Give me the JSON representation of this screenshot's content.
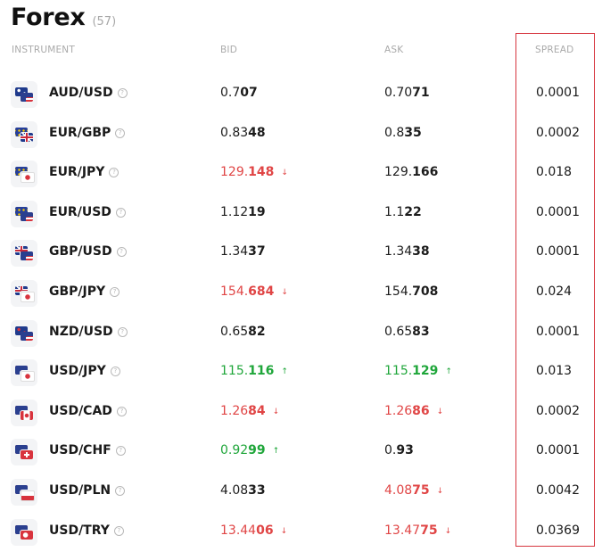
{
  "header": {
    "title": "Forex",
    "count": "(57)"
  },
  "columns": {
    "instrument": "INSTRUMENT",
    "bid": "BID",
    "ask": "ASK",
    "spread": "SPREAD"
  },
  "colors": {
    "up": "#1fa63a",
    "down": "#e04545",
    "neutral": "#1a1a1a",
    "highlight_box": "#d6363f"
  },
  "rows": [
    {
      "pair": "AUD/USD",
      "flags": [
        "AU",
        "US"
      ],
      "bid": {
        "base": "0.7",
        "hl": "07",
        "dir": "none"
      },
      "ask": {
        "base": "0.70",
        "hl": "71",
        "dir": "none"
      },
      "spread": "0.0001"
    },
    {
      "pair": "EUR/GBP",
      "flags": [
        "EU",
        "GB"
      ],
      "bid": {
        "base": "0.83",
        "hl": "48",
        "dir": "none"
      },
      "ask": {
        "base": "0.8",
        "hl": "35",
        "dir": "none"
      },
      "spread": "0.0002"
    },
    {
      "pair": "EUR/JPY",
      "flags": [
        "EU",
        "JP"
      ],
      "bid": {
        "base": "129.",
        "hl": "148",
        "dir": "down"
      },
      "ask": {
        "base": "129.",
        "hl": "166",
        "dir": "none"
      },
      "spread": "0.018"
    },
    {
      "pair": "EUR/USD",
      "flags": [
        "EU",
        "US"
      ],
      "bid": {
        "base": "1.12",
        "hl": "19",
        "dir": "none"
      },
      "ask": {
        "base": "1.1",
        "hl": "22",
        "dir": "none"
      },
      "spread": "0.0001"
    },
    {
      "pair": "GBP/USD",
      "flags": [
        "GB",
        "US"
      ],
      "bid": {
        "base": "1.34",
        "hl": "37",
        "dir": "none"
      },
      "ask": {
        "base": "1.34",
        "hl": "38",
        "dir": "none"
      },
      "spread": "0.0001"
    },
    {
      "pair": "GBP/JPY",
      "flags": [
        "GB",
        "JP"
      ],
      "bid": {
        "base": "154.",
        "hl": "684",
        "dir": "down"
      },
      "ask": {
        "base": "154.",
        "hl": "708",
        "dir": "none"
      },
      "spread": "0.024"
    },
    {
      "pair": "NZD/USD",
      "flags": [
        "NZ",
        "US"
      ],
      "bid": {
        "base": "0.65",
        "hl": "82",
        "dir": "none"
      },
      "ask": {
        "base": "0.65",
        "hl": "83",
        "dir": "none"
      },
      "spread": "0.0001"
    },
    {
      "pair": "USD/JPY",
      "flags": [
        "US",
        "JP"
      ],
      "bid": {
        "base": "115.",
        "hl": "116",
        "dir": "up"
      },
      "ask": {
        "base": "115.",
        "hl": "129",
        "dir": "up"
      },
      "spread": "0.013"
    },
    {
      "pair": "USD/CAD",
      "flags": [
        "US",
        "CA"
      ],
      "bid": {
        "base": "1.26",
        "hl": "84",
        "dir": "down"
      },
      "ask": {
        "base": "1.26",
        "hl": "86",
        "dir": "down"
      },
      "spread": "0.0002"
    },
    {
      "pair": "USD/CHF",
      "flags": [
        "US",
        "CH"
      ],
      "bid": {
        "base": "0.92",
        "hl": "99",
        "dir": "up"
      },
      "ask": {
        "base": "0.",
        "hl": "93",
        "dir": "none"
      },
      "spread": "0.0001"
    },
    {
      "pair": "USD/PLN",
      "flags": [
        "US",
        "PL"
      ],
      "bid": {
        "base": "4.08",
        "hl": "33",
        "dir": "none"
      },
      "ask": {
        "base": "4.08",
        "hl": "75",
        "dir": "down"
      },
      "spread": "0.0042"
    },
    {
      "pair": "USD/TRY",
      "flags": [
        "US",
        "TR"
      ],
      "bid": {
        "base": "13.44",
        "hl": "06",
        "dir": "down"
      },
      "ask": {
        "base": "13.47",
        "hl": "75",
        "dir": "down"
      },
      "spread": "0.0369"
    }
  ]
}
